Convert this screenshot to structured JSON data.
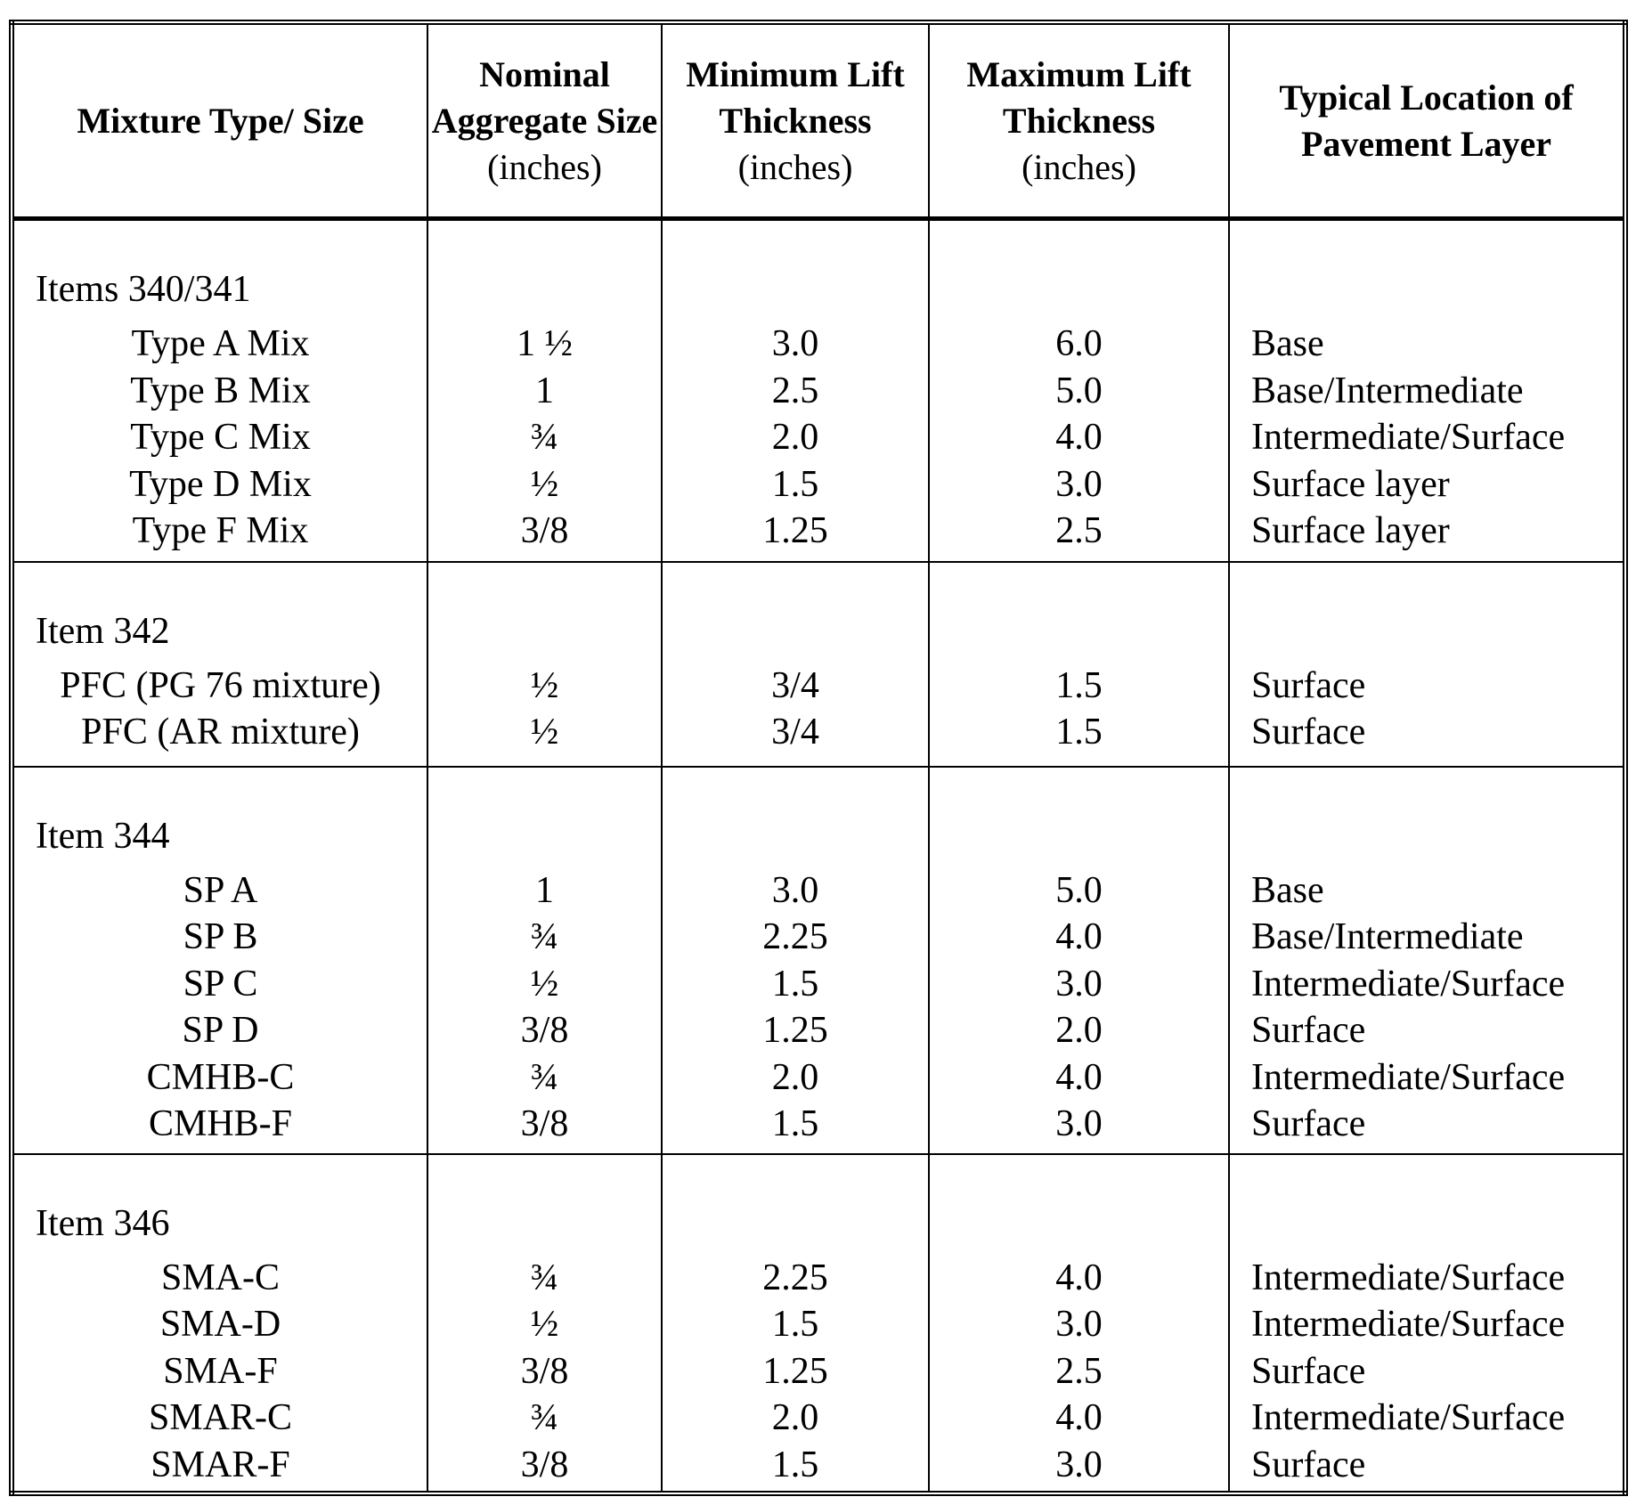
{
  "table": {
    "headers": [
      {
        "title": "Mixture Type/ Size"
      },
      {
        "title": "Nominal Aggregate Size",
        "unit": "(inches)"
      },
      {
        "title": "Minimum Lift Thickness",
        "unit": "(inches)"
      },
      {
        "title": "Maximum Lift Thickness",
        "unit": "(inches)"
      },
      {
        "title": "Typical Location of Pavement Layer"
      }
    ],
    "groups": [
      {
        "title": "Items 340/341",
        "rows": [
          [
            "Type A Mix",
            "1 ½",
            "3.0",
            "6.0",
            "Base"
          ],
          [
            "Type B Mix",
            "1",
            "2.5",
            "5.0",
            "Base/Intermediate"
          ],
          [
            "Type C Mix",
            "¾",
            "2.0",
            "4.0",
            "Intermediate/Surface"
          ],
          [
            "Type D Mix",
            "½",
            "1.5",
            "3.0",
            "Surface layer"
          ],
          [
            "Type F Mix",
            "3/8",
            "1.25",
            "2.5",
            "Surface layer"
          ]
        ]
      },
      {
        "title": "Item 342",
        "rows": [
          [
            "PFC (PG 76 mixture)",
            "½",
            "3/4",
            "1.5",
            "Surface"
          ],
          [
            "PFC (AR mixture)",
            "½",
            "3/4",
            "1.5",
            "Surface"
          ]
        ]
      },
      {
        "title": "Item 344",
        "rows": [
          [
            "SP A",
            "1",
            "3.0",
            "5.0",
            "Base"
          ],
          [
            "SP B",
            "¾",
            "2.25",
            "4.0",
            "Base/Intermediate"
          ],
          [
            "SP C",
            "½",
            "1.5",
            "3.0",
            "Intermediate/Surface"
          ],
          [
            "SP D",
            "3/8",
            "1.25",
            "2.0",
            "Surface"
          ],
          [
            "CMHB-C",
            "¾",
            "2.0",
            "4.0",
            "Intermediate/Surface"
          ],
          [
            "CMHB-F",
            "3/8",
            "1.5",
            "3.0",
            "Surface"
          ]
        ]
      },
      {
        "title": "Item 346",
        "rows": [
          [
            "SMA-C",
            "¾",
            "2.25",
            "4.0",
            "Intermediate/Surface"
          ],
          [
            "SMA-D",
            "½",
            "1.5",
            "3.0",
            "Intermediate/Surface"
          ],
          [
            "SMA-F",
            "3/8",
            "1.25",
            "2.5",
            "Surface"
          ],
          [
            "SMAR-C",
            "¾",
            "2.0",
            "4.0",
            "Intermediate/Surface"
          ],
          [
            "SMAR-F",
            "3/8",
            "1.5",
            "3.0",
            "Surface"
          ]
        ]
      }
    ]
  }
}
